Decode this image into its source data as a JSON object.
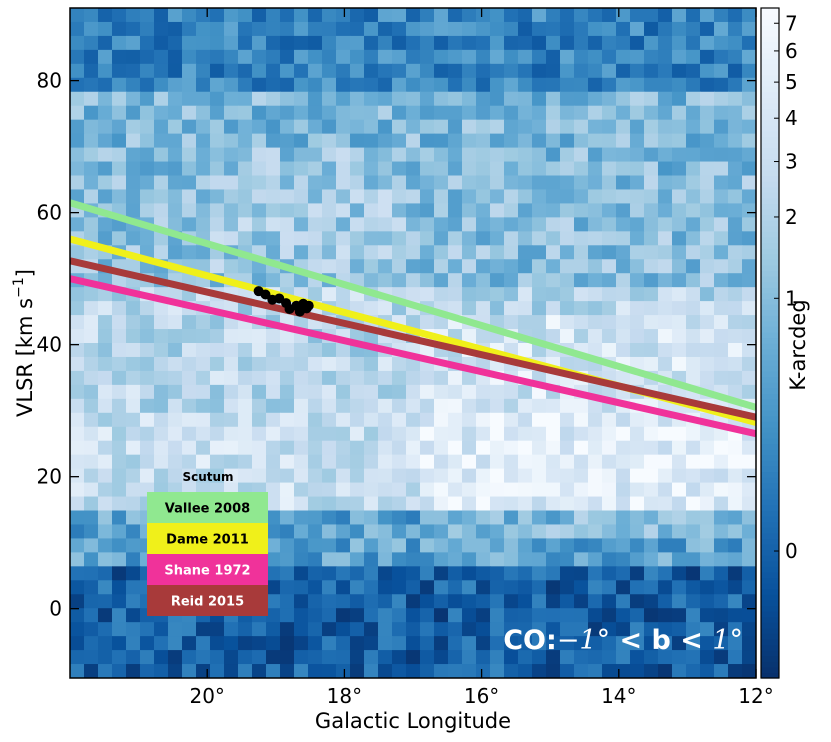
{
  "chart_data": {
    "type": "heatmap",
    "title": "",
    "xlabel": "Galactic Longitude",
    "ylabel_main": "VLSR [km s",
    "ylabel_sup": "−1",
    "ylabel_close": "]",
    "xlim": [
      22,
      12
    ],
    "ylim": [
      -10.5,
      91
    ],
    "x_ticks": [
      20,
      18,
      16,
      14,
      12
    ],
    "x_tick_labels": [
      "20°",
      "18°",
      "16°",
      "14°",
      "12°"
    ],
    "y_ticks": [
      0,
      20,
      40,
      60,
      80
    ],
    "y_tick_labels": [
      "0",
      "20",
      "40",
      "60",
      "80"
    ],
    "colorbar": {
      "label": "K-arcdeg",
      "scale": "nonlinear",
      "ticks": [
        0,
        1,
        2,
        3,
        4,
        5,
        6,
        7
      ],
      "tick_labels": [
        "0",
        "1",
        "2",
        "3",
        "4",
        "5",
        "6",
        "7"
      ],
      "colors": [
        "#08306b",
        "#08519c",
        "#2171b5",
        "#4292c6",
        "#6baed6",
        "#9ecae1",
        "#c6dbef",
        "#deebf7",
        "#f7fbff"
      ]
    },
    "heatmap_bands": [
      {
        "v_min": 78,
        "v_max": 91,
        "level": 0.32
      },
      {
        "v_min": 65,
        "v_max": 78,
        "level": 0.55
      },
      {
        "v_min": 48,
        "v_max": 65,
        "level": 0.58
      },
      {
        "v_min": 30,
        "v_max": 48,
        "level": 0.72
      },
      {
        "v_min": 15,
        "v_max": 30,
        "level": 0.78
      },
      {
        "v_min": 6,
        "v_max": 15,
        "level": 0.45
      },
      {
        "v_min": -10.5,
        "v_max": 6,
        "level": 0.18
      }
    ],
    "series": [
      {
        "name": "Vallee 2008",
        "color": "#90e890",
        "x": [
          22,
          12
        ],
        "y": [
          61.5,
          30.5
        ]
      },
      {
        "name": "Dame 2011",
        "color": "#f0f01a",
        "x": [
          22,
          12
        ],
        "y": [
          56,
          28.2
        ]
      },
      {
        "name": "Reid 2015",
        "color": "#a83a3a",
        "x": [
          22,
          12
        ],
        "y": [
          52.7,
          29
        ]
      },
      {
        "name": "Shane 1972",
        "color": "#f0329a",
        "x": [
          22,
          12
        ],
        "y": [
          50,
          26.5
        ]
      }
    ],
    "points": [
      {
        "x": 19.25,
        "y": 48.1
      },
      {
        "x": 19.15,
        "y": 47.6
      },
      {
        "x": 19.05,
        "y": 46.8
      },
      {
        "x": 18.95,
        "y": 47.0
      },
      {
        "x": 18.85,
        "y": 46.3
      },
      {
        "x": 18.8,
        "y": 45.4
      },
      {
        "x": 18.7,
        "y": 45.9
      },
      {
        "x": 18.65,
        "y": 45.0
      },
      {
        "x": 18.6,
        "y": 46.2
      },
      {
        "x": 18.55,
        "y": 45.5
      },
      {
        "x": 18.52,
        "y": 45.9
      }
    ],
    "points_color": "#000000",
    "legend": {
      "title": "Scutum",
      "placement": "lower-left",
      "entries": [
        {
          "label": "Vallee 2008",
          "bg": "#90e890",
          "text_color": "#000000"
        },
        {
          "label": "Dame 2011",
          "bg": "#f0f01a",
          "text_color": "#000000"
        },
        {
          "label": "Shane 1972",
          "bg": "#f0329a",
          "text_color": "#ffffff"
        },
        {
          "label": "Reid 2015",
          "bg": "#a83a3a",
          "text_color": "#ffffff"
        }
      ]
    },
    "annotation": {
      "prefix": "CO:",
      "mid1": "−1°",
      "mid2": " < b < ",
      "mid3": "1°",
      "placement": "bottom-right"
    }
  }
}
